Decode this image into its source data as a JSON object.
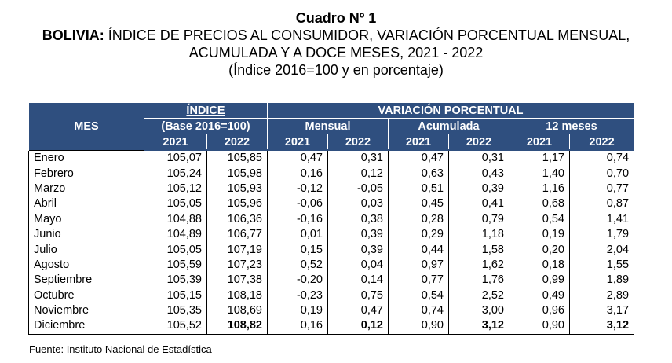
{
  "title": {
    "line1": "Cuadro Nº 1",
    "line2_bold": "BOLIVIA:",
    "line2_rest": " ÍNDICE DE PRECIOS AL CONSUMIDOR, VARIACIÓN PORCENTUAL MENSUAL,",
    "line3": "ACUMULADA Y A DOCE MESES, 2021 - 2022",
    "line4": "(Índice 2016=100 y en porcentaje)"
  },
  "headers": {
    "mes": "MES",
    "indice": "ÍNDICE",
    "indice_base": "(Base 2016=100)",
    "variacion": "VARIACIÓN PORCENTUAL",
    "mensual": "Mensual",
    "acumulada": "Acumulada",
    "doce_meses": "12 meses",
    "years": [
      "2021",
      "2022",
      "2021",
      "2022",
      "2021",
      "2022",
      "2021",
      "2022"
    ]
  },
  "rows": [
    {
      "mes": "Enero",
      "v": [
        "105,07",
        "105,85",
        "0,47",
        "0,31",
        "0,47",
        "0,31",
        "1,17",
        "0,74"
      ]
    },
    {
      "mes": "Febrero",
      "v": [
        "105,24",
        "105,98",
        "0,16",
        "0,12",
        "0,63",
        "0,43",
        "1,40",
        "0,70"
      ]
    },
    {
      "mes": "Marzo",
      "v": [
        "105,12",
        "105,93",
        "-0,12",
        "-0,05",
        "0,51",
        "0,39",
        "1,16",
        "0,77"
      ]
    },
    {
      "mes": "Abril",
      "v": [
        "105,05",
        "105,96",
        "-0,06",
        "0,03",
        "0,45",
        "0,41",
        "0,68",
        "0,87"
      ]
    },
    {
      "mes": "Mayo",
      "v": [
        "104,88",
        "106,36",
        "-0,16",
        "0,38",
        "0,28",
        "0,79",
        "0,54",
        "1,41"
      ]
    },
    {
      "mes": "Junio",
      "v": [
        "104,89",
        "106,77",
        "0,01",
        "0,39",
        "0,29",
        "1,18",
        "0,19",
        "1,79"
      ]
    },
    {
      "mes": "Julio",
      "v": [
        "105,05",
        "107,19",
        "0,15",
        "0,39",
        "0,44",
        "1,58",
        "0,20",
        "2,04"
      ]
    },
    {
      "mes": "Agosto",
      "v": [
        "105,59",
        "107,23",
        "0,52",
        "0,04",
        "0,97",
        "1,62",
        "0,18",
        "1,55"
      ]
    },
    {
      "mes": "Septiembre",
      "v": [
        "105,39",
        "107,38",
        "-0,20",
        "0,14",
        "0,77",
        "1,76",
        "0,99",
        "1,89"
      ]
    },
    {
      "mes": "Octubre",
      "v": [
        "105,15",
        "108,18",
        "-0,23",
        "0,75",
        "0,54",
        "2,52",
        "0,49",
        "2,89"
      ]
    },
    {
      "mes": "Noviembre",
      "v": [
        "105,35",
        "108,69",
        "0,19",
        "0,47",
        "0,74",
        "3,00",
        "0,96",
        "3,17"
      ]
    },
    {
      "mes": "Diciembre",
      "v": [
        "105,52",
        "108,82",
        "0,16",
        "0,12",
        "0,90",
        "3,12",
        "0,90",
        "3,12"
      ]
    }
  ],
  "source": "Fuente: Instituto Nacional de Estadística",
  "colors": {
    "header_bg": "#2f4f7f",
    "header_text": "#ffffff"
  }
}
